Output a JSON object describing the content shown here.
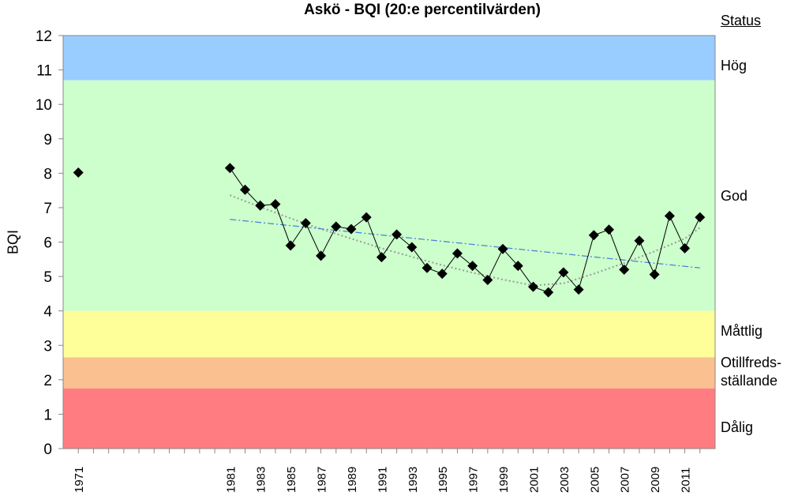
{
  "chart_data": {
    "type": "line",
    "title": "Askö -  BQI (20:e percentilvärden)",
    "ylabel": "BQI",
    "xlabel": "",
    "ylim": [
      0,
      12
    ],
    "xlim": [
      1970,
      2013
    ],
    "yticks": [
      0,
      1,
      2,
      3,
      4,
      5,
      6,
      7,
      8,
      9,
      10,
      11,
      12
    ],
    "xtick_labels": [
      "1971",
      "1981",
      "1983",
      "1985",
      "1987",
      "1989",
      "1991",
      "1993",
      "1995",
      "1997",
      "1999",
      "2001",
      "2003",
      "2005",
      "2007",
      "2009",
      "2011"
    ],
    "grid": false,
    "status_header": "Status",
    "status_bands": [
      {
        "label": "Hög",
        "from": 10.7,
        "to": 12,
        "color": "#99ccff"
      },
      {
        "label": "God",
        "from": 4.0,
        "to": 10.7,
        "color": "#ccffcc"
      },
      {
        "label": "Måttlig",
        "from": 2.65,
        "to": 4.0,
        "color": "#ffff99"
      },
      {
        "label": "Otillfreds-\nställande",
        "from": 1.75,
        "to": 2.65,
        "color": "#fac090"
      },
      {
        "label": "Dålig",
        "from": 0,
        "to": 1.75,
        "color": "#ff7c80"
      }
    ],
    "series": [
      {
        "style": "markers-line",
        "color": "#000000",
        "marker": "diamond",
        "x": [
          1971,
          1981,
          1982,
          1983,
          1984,
          1985,
          1986,
          1987,
          1988,
          1989,
          1990,
          1991,
          1992,
          1993,
          1994,
          1995,
          1996,
          1997,
          1998,
          1999,
          2000,
          2001,
          2002,
          2003,
          2004,
          2005,
          2006,
          2007,
          2008,
          2009,
          2010,
          2011,
          2012
        ],
        "values": [
          8.02,
          8.15,
          7.52,
          7.06,
          7.1,
          5.9,
          6.55,
          5.6,
          6.45,
          6.38,
          6.72,
          5.56,
          6.22,
          5.85,
          5.25,
          5.08,
          5.67,
          5.31,
          4.9,
          5.8,
          5.31,
          4.7,
          4.54,
          5.12,
          4.62,
          6.2,
          6.36,
          5.2,
          6.04,
          5.06,
          6.76,
          5.82,
          6.72
        ]
      },
      {
        "style": "linear-trend",
        "color": "#4a7ad6",
        "x": [
          1981,
          2012
        ],
        "values": [
          6.66,
          5.25
        ]
      },
      {
        "style": "polynomial-trend",
        "color": "#9a9a9a",
        "x": [
          1981,
          1983,
          1985,
          1987,
          1989,
          1991,
          1993,
          1995,
          1997,
          1999,
          2001,
          2003,
          2005,
          2007,
          2009,
          2011,
          2012
        ],
        "values": [
          7.36,
          7.02,
          6.69,
          6.38,
          6.1,
          5.82,
          5.57,
          5.33,
          5.11,
          4.91,
          4.74,
          4.8,
          5.08,
          5.39,
          5.73,
          6.1,
          6.42
        ]
      }
    ]
  }
}
